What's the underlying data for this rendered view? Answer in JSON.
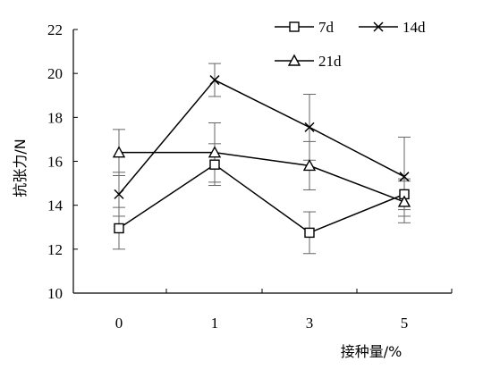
{
  "chart_data": {
    "type": "line",
    "title": "",
    "xlabel": "接种量/%",
    "ylabel": "抗张力/N",
    "categories": [
      "0",
      "1",
      "3",
      "5"
    ],
    "ylim": [
      10,
      22
    ],
    "yticks": [
      10,
      12,
      14,
      16,
      18,
      20,
      22
    ],
    "grid": false,
    "legend_position": "top-right",
    "series": [
      {
        "name": "7d",
        "marker": "square",
        "values": [
          12.95,
          15.85,
          12.75,
          14.5
        ],
        "error": [
          0.95,
          0.95,
          0.95,
          0.7
        ]
      },
      {
        "name": "14d",
        "marker": "x",
        "values": [
          14.5,
          19.7,
          17.55,
          15.3
        ],
        "error": [
          1.0,
          0.75,
          1.5,
          1.8
        ]
      },
      {
        "name": "21d",
        "marker": "triangle",
        "values": [
          16.4,
          16.4,
          15.8,
          14.15
        ],
        "error": [
          1.05,
          1.35,
          1.1,
          0.95
        ]
      }
    ]
  }
}
